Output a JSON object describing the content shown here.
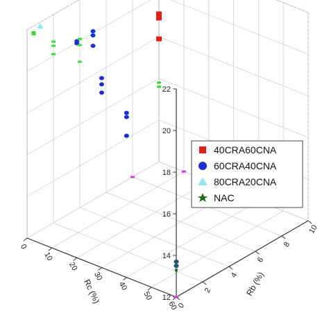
{
  "chart_data": {
    "type": "scatter",
    "subtype": "3d",
    "title": "",
    "xlabel": "Rc (%)",
    "ylabel": "Rb (%)",
    "zlabel": "",
    "x_ticks": [
      "0",
      "10",
      "20",
      "30",
      "40",
      "50",
      "60"
    ],
    "y_ticks": [
      "0",
      "2",
      "4",
      "6",
      "8",
      "10"
    ],
    "z_ticks": [
      "12",
      "14",
      "16",
      "18",
      "20",
      "22"
    ],
    "xlim": [
      0,
      60
    ],
    "ylim": [
      0,
      10
    ],
    "zlim": [
      12,
      22
    ],
    "grid": true,
    "legend_position": "right",
    "series": [
      {
        "name": "40CRA60CNA",
        "marker": "square",
        "color": "#e0201b",
        "points": [
          {
            "x": 0,
            "y": 10,
            "z": 19.1
          },
          {
            "x": 0,
            "y": 10,
            "z": 18.9
          },
          {
            "x": 0,
            "y": 10,
            "z": 17.9
          }
        ]
      },
      {
        "name": "60CRA40CNA",
        "marker": "circle",
        "color": "#1a2fd6",
        "points": [
          {
            "x": 60,
            "y": 0,
            "z": 13.7
          },
          {
            "x": 60,
            "y": 0,
            "z": 13.5
          },
          {
            "x": 40,
            "y": 0,
            "z": 19.9
          },
          {
            "x": 40,
            "y": 0,
            "z": 19.7
          },
          {
            "x": 40,
            "y": 0,
            "z": 18.8
          },
          {
            "x": 30,
            "y": 0,
            "z": 21.1
          },
          {
            "x": 30,
            "y": 0,
            "z": 20.8
          },
          {
            "x": 30,
            "y": 0,
            "z": 20.4
          },
          {
            "x": 20,
            "y": 0,
            "z": 22.4
          },
          {
            "x": 20,
            "y": 0,
            "z": 22.3
          },
          {
            "x": 0,
            "y": 5,
            "z": 20.1
          },
          {
            "x": 0,
            "y": 5,
            "z": 19.9
          },
          {
            "x": 0,
            "y": 5,
            "z": 19.4
          }
        ]
      },
      {
        "name": "80CRA20CNA",
        "marker": "triangle",
        "color": "#8fe6f5",
        "points": [
          {
            "x": 0,
            "y": 1,
            "z": 21.8
          }
        ]
      },
      {
        "name": "NAC",
        "marker": "star",
        "color": "#1c6e1c",
        "points": [
          {
            "x": 60,
            "y": 0,
            "z": 13.7
          },
          {
            "x": 60,
            "y": 0,
            "z": 13.5
          },
          {
            "x": 60,
            "y": 0,
            "z": 13.3
          }
        ]
      },
      {
        "name": "",
        "marker": "dash",
        "color": "#33dd33",
        "points": [
          {
            "x": 0,
            "y": 0.5,
            "z": 21.7
          },
          {
            "x": 0,
            "y": 0.5,
            "z": 21.6
          },
          {
            "x": 0,
            "y": 2,
            "z": 20.7
          },
          {
            "x": 0,
            "y": 2,
            "z": 20.5
          },
          {
            "x": 0,
            "y": 2,
            "z": 20.1
          },
          {
            "x": 0,
            "y": 4,
            "z": 20.1
          },
          {
            "x": 0,
            "y": 4,
            "z": 19.8
          },
          {
            "x": 0,
            "y": 4,
            "z": 19.0
          },
          {
            "x": 0,
            "y": 10,
            "z": 15.8
          },
          {
            "x": 0,
            "y": 10,
            "z": 15.6
          }
        ]
      },
      {
        "name": "",
        "marker": "dash",
        "color": "#dd33dd",
        "points": [
          {
            "x": 60,
            "y": 0,
            "z": 12
          },
          {
            "x": 30,
            "y": 10,
            "z": 12
          },
          {
            "x": 10,
            "y": 10,
            "z": 12
          },
          {
            "x": 0,
            "y": 8,
            "z": 12
          }
        ]
      }
    ]
  },
  "legend": {
    "items": [
      {
        "label": "40CRA60CNA",
        "color": "#e0201b",
        "marker": "square"
      },
      {
        "label": "60CRA40CNA",
        "color": "#1a2fd6",
        "marker": "circle"
      },
      {
        "label": "80CRA20CNA",
        "color": "#8fe6f5",
        "marker": "triangle"
      },
      {
        "label": "NAC",
        "color": "#1c6e1c",
        "marker": "star"
      }
    ]
  }
}
